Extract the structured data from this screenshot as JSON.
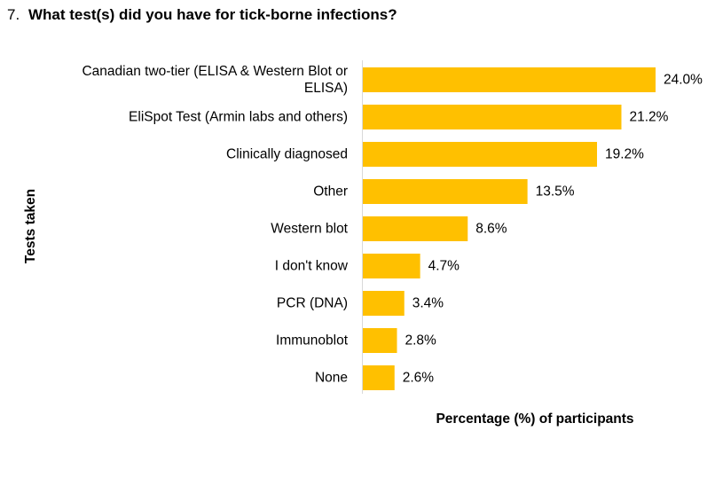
{
  "question": {
    "number": "7.",
    "text": "What test(s) did you have for tick-borne infections?"
  },
  "colors": {
    "bar": "#FFC000",
    "axis": "#D9D9D9",
    "text": "#000000"
  },
  "chart_data": {
    "type": "bar",
    "orientation": "horizontal",
    "title": "What test(s) did you have for tick-borne infections?",
    "xlabel": "Percentage (%) of participants",
    "ylabel": "Tests taken",
    "categories": [
      [
        "Canadian two-tier (ELISA & Western Blot or",
        "ELISA)"
      ],
      [
        "EliSpot Test (Armin labs and others)"
      ],
      [
        "Clinically diagnosed"
      ],
      [
        "Other"
      ],
      [
        "Western blot"
      ],
      [
        "I don't know"
      ],
      [
        "PCR (DNA)"
      ],
      [
        "Immunoblot"
      ],
      [
        "None"
      ]
    ],
    "values": [
      24.0,
      21.2,
      19.2,
      13.5,
      8.6,
      4.7,
      3.4,
      2.8,
      2.6
    ],
    "value_labels": [
      "24.0%",
      "21.2%",
      "19.2%",
      "13.5%",
      "8.6%",
      "4.7%",
      "3.4%",
      "2.8%",
      "2.6%"
    ],
    "xlim": [
      0,
      24.0
    ],
    "grid": false,
    "legend": "none"
  }
}
